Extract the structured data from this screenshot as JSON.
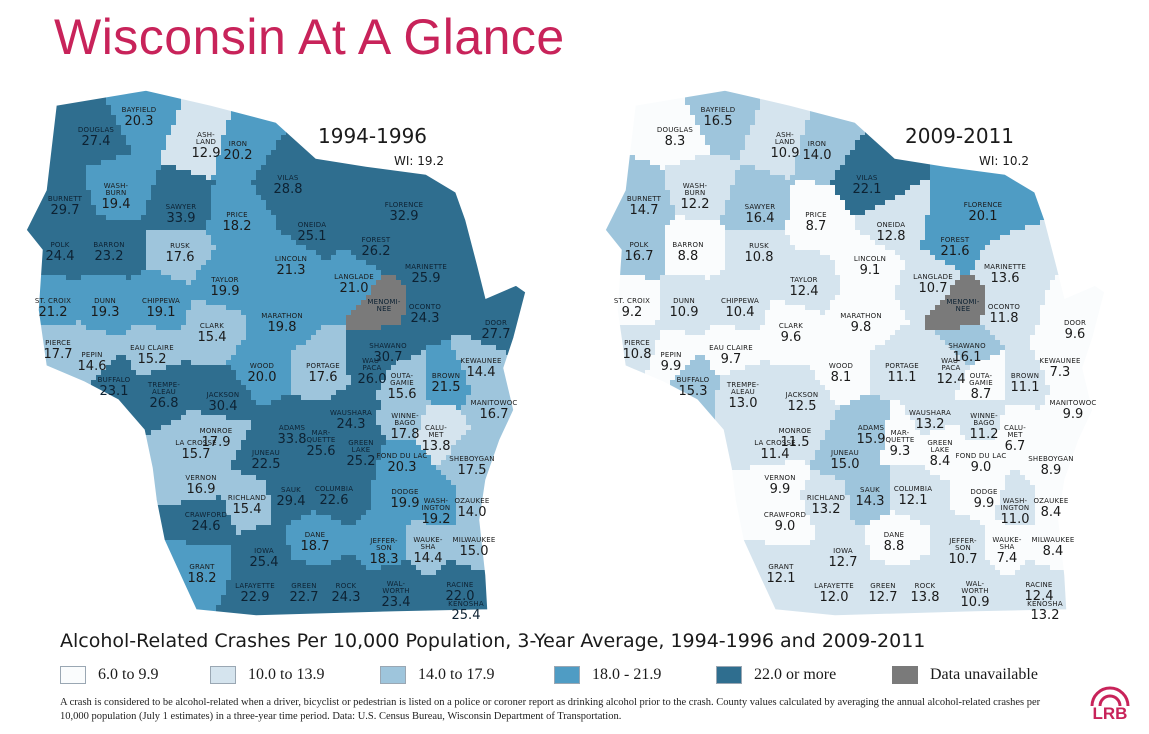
{
  "title": "Wisconsin At A Glance",
  "subtitle": "Alcohol-Related Crashes Per 10,000 Population, 3-Year Average, 1994-1996 and 2009-2011",
  "note": "A crash is considered to be alcohol-related when a driver, bicyclist or pedestrian is listed on a police or coroner report as drinking alcohol prior to the crash. County values calculated by averaging the annual alcohol-related crashes per 10,000 population (July 1 estimates) in a three-year time period. Data: U.S. Census Bureau, Wisconsin Department of Transportation.",
  "logo_text": "LRB",
  "colors": {
    "title": "#c8235a",
    "bin_6_9": "#fafcfd",
    "bin_10_13": "#d5e4ee",
    "bin_14_17": "#9ec5dc",
    "bin_18_21": "#4f9cc4",
    "bin_22_plus": "#2f6e8f",
    "unavailable": "#7a7a7a"
  },
  "legend": [
    {
      "label": "6.0 to 9.9",
      "color": "#fafcfd"
    },
    {
      "label": "10.0 to 13.9",
      "color": "#d5e4ee"
    },
    {
      "label": "14.0 to 17.9",
      "color": "#9ec5dc"
    },
    {
      "label": "18.0 - 21.9",
      "color": "#4f9cc4"
    },
    {
      "label": "22.0 or more",
      "color": "#2f6e8f"
    },
    {
      "label": "Data unavailable",
      "color": "#7a7a7a"
    }
  ],
  "maps": [
    {
      "period": "1994-1996",
      "wi_label": "WI: 19.2",
      "counties": [
        {
          "name": "DOUGLAS",
          "value": "27.4"
        },
        {
          "name": "BAYFIELD",
          "value": "20.3"
        },
        {
          "name": "ASH-\nLAND",
          "value": "12.9"
        },
        {
          "name": "IRON",
          "value": "20.2"
        },
        {
          "name": "VILAS",
          "value": "28.8"
        },
        {
          "name": "FLORENCE",
          "value": "32.9"
        },
        {
          "name": "BURNETT",
          "value": "29.7"
        },
        {
          "name": "WASH-\nBURN",
          "value": "19.4"
        },
        {
          "name": "SAWYER",
          "value": "33.9"
        },
        {
          "name": "PRICE",
          "value": "18.2"
        },
        {
          "name": "ONEIDA",
          "value": "25.1"
        },
        {
          "name": "FOREST",
          "value": "26.2"
        },
        {
          "name": "MARINETTE",
          "value": "25.9"
        },
        {
          "name": "POLK",
          "value": "24.4"
        },
        {
          "name": "BARRON",
          "value": "23.2"
        },
        {
          "name": "RUSK",
          "value": "17.6"
        },
        {
          "name": "LINCOLN",
          "value": "21.3"
        },
        {
          "name": "LANGLADE",
          "value": "21.0"
        },
        {
          "name": "TAYLOR",
          "value": "19.9"
        },
        {
          "name": "ST. CROIX",
          "value": "21.2"
        },
        {
          "name": "DUNN",
          "value": "19.3"
        },
        {
          "name": "CHIPPEWA",
          "value": "19.1"
        },
        {
          "name": "MENOMI-\nNEE",
          "value": ""
        },
        {
          "name": "OCONTO",
          "value": "24.3"
        },
        {
          "name": "MARATHON",
          "value": "19.8"
        },
        {
          "name": "CLARK",
          "value": "15.4"
        },
        {
          "name": "DOOR",
          "value": "27.7"
        },
        {
          "name": "PIERCE",
          "value": "17.7"
        },
        {
          "name": "EAU CLAIRE",
          "value": "15.2"
        },
        {
          "name": "SHAWANO",
          "value": "30.7"
        },
        {
          "name": "PEPIN",
          "value": "14.6"
        },
        {
          "name": "KEWAUNEE",
          "value": "14.4"
        },
        {
          "name": "WOOD",
          "value": "20.0"
        },
        {
          "name": "PORTAGE",
          "value": "17.6"
        },
        {
          "name": "WAU-\nPACA",
          "value": "26.0"
        },
        {
          "name": "OUTA-\nGAMIE",
          "value": "15.6"
        },
        {
          "name": "BROWN",
          "value": "21.5"
        },
        {
          "name": "BUFFALO",
          "value": "23.1"
        },
        {
          "name": "TREMPE-\nALEAU",
          "value": "26.8"
        },
        {
          "name": "JACKSON",
          "value": "30.4"
        },
        {
          "name": "MANITOWOC",
          "value": "16.7"
        },
        {
          "name": "WAUSHARA",
          "value": "24.3"
        },
        {
          "name": "WINNE-\nBAGO",
          "value": "17.8"
        },
        {
          "name": "CALU-\nMET",
          "value": "13.8"
        },
        {
          "name": "LA CROSSE",
          "value": "15.7"
        },
        {
          "name": "MONROE",
          "value": "17.9"
        },
        {
          "name": "ADAMS",
          "value": "33.8"
        },
        {
          "name": "MAR-\nQUETTE",
          "value": "25.6"
        },
        {
          "name": "GREEN\nLAKE",
          "value": "25.2"
        },
        {
          "name": "JUNEAU",
          "value": "22.5"
        },
        {
          "name": "FOND DU LAC",
          "value": "20.3"
        },
        {
          "name": "SHEBOYGAN",
          "value": "17.5"
        },
        {
          "name": "VERNON",
          "value": "16.9"
        },
        {
          "name": "RICHLAND",
          "value": "15.4"
        },
        {
          "name": "SAUK",
          "value": "29.4"
        },
        {
          "name": "COLUMBIA",
          "value": "22.6"
        },
        {
          "name": "DODGE",
          "value": "19.9"
        },
        {
          "name": "WASH-\nINGTON",
          "value": "19.2"
        },
        {
          "name": "OZAUKEE",
          "value": "14.0"
        },
        {
          "name": "CRAWFORD",
          "value": "24.6"
        },
        {
          "name": "DANE",
          "value": "18.7"
        },
        {
          "name": "JEFFER-\nSON",
          "value": "18.3"
        },
        {
          "name": "WAUKE-\nSHA",
          "value": "14.4"
        },
        {
          "name": "MILWAUKEE",
          "value": "15.0"
        },
        {
          "name": "GRANT",
          "value": "18.2"
        },
        {
          "name": "IOWA",
          "value": "25.4"
        },
        {
          "name": "LAFAYETTE",
          "value": "22.9"
        },
        {
          "name": "GREEN",
          "value": "22.7"
        },
        {
          "name": "ROCK",
          "value": "24.3"
        },
        {
          "name": "WAL-\nWORTH",
          "value": "23.4"
        },
        {
          "name": "RACINE",
          "value": "22.0"
        },
        {
          "name": "KENOSHA",
          "value": "25.4"
        }
      ]
    },
    {
      "period": "2009-2011",
      "wi_label": "WI: 10.2",
      "counties": [
        {
          "name": "DOUGLAS",
          "value": "8.3"
        },
        {
          "name": "BAYFIELD",
          "value": "16.5"
        },
        {
          "name": "ASH-\nLAND",
          "value": "10.9"
        },
        {
          "name": "IRON",
          "value": "14.0"
        },
        {
          "name": "VILAS",
          "value": "22.1"
        },
        {
          "name": "FLORENCE",
          "value": "20.1"
        },
        {
          "name": "BURNETT",
          "value": "14.7"
        },
        {
          "name": "WASH-\nBURN",
          "value": "12.2"
        },
        {
          "name": "SAWYER",
          "value": "16.4"
        },
        {
          "name": "PRICE",
          "value": "8.7"
        },
        {
          "name": "ONEIDA",
          "value": "12.8"
        },
        {
          "name": "FOREST",
          "value": "21.6"
        },
        {
          "name": "MARINETTE",
          "value": "13.6"
        },
        {
          "name": "POLK",
          "value": "16.7"
        },
        {
          "name": "BARRON",
          "value": "8.8"
        },
        {
          "name": "RUSK",
          "value": "10.8"
        },
        {
          "name": "LINCOLN",
          "value": "9.1"
        },
        {
          "name": "LANGLADE",
          "value": "10.7"
        },
        {
          "name": "TAYLOR",
          "value": "12.4"
        },
        {
          "name": "ST. CROIX",
          "value": "9.2"
        },
        {
          "name": "DUNN",
          "value": "10.9"
        },
        {
          "name": "CHIPPEWA",
          "value": "10.4"
        },
        {
          "name": "MENOMI-\nNEE",
          "value": ""
        },
        {
          "name": "OCONTO",
          "value": "11.8"
        },
        {
          "name": "MARATHON",
          "value": "9.8"
        },
        {
          "name": "CLARK",
          "value": "9.6"
        },
        {
          "name": "DOOR",
          "value": "9.6"
        },
        {
          "name": "PIERCE",
          "value": "10.8"
        },
        {
          "name": "EAU CLAIRE",
          "value": "9.7"
        },
        {
          "name": "SHAWANO",
          "value": "16.1"
        },
        {
          "name": "PEPIN",
          "value": "9.9"
        },
        {
          "name": "KEWAUNEE",
          "value": "7.3"
        },
        {
          "name": "WOOD",
          "value": "8.1"
        },
        {
          "name": "PORTAGE",
          "value": "11.1"
        },
        {
          "name": "WAU-\nPACA",
          "value": "12.4"
        },
        {
          "name": "OUTA-\nGAMIE",
          "value": "8.7"
        },
        {
          "name": "BROWN",
          "value": "11.1"
        },
        {
          "name": "BUFFALO",
          "value": "15.3"
        },
        {
          "name": "TREMPE-\nALEAU",
          "value": "13.0"
        },
        {
          "name": "JACKSON",
          "value": "12.5"
        },
        {
          "name": "MANITOWOC",
          "value": "9.9"
        },
        {
          "name": "WAUSHARA",
          "value": "13.2"
        },
        {
          "name": "WINNE-\nBAGO",
          "value": "11.2"
        },
        {
          "name": "CALU-\nMET",
          "value": "6.7"
        },
        {
          "name": "LA CROSSE",
          "value": "11.4"
        },
        {
          "name": "MONROE",
          "value": "11.5"
        },
        {
          "name": "ADAMS",
          "value": "15.9"
        },
        {
          "name": "MAR-\nQUETTE",
          "value": "9.3"
        },
        {
          "name": "GREEN\nLAKE",
          "value": "8.4"
        },
        {
          "name": "JUNEAU",
          "value": "15.0"
        },
        {
          "name": "FOND DU LAC",
          "value": "9.0"
        },
        {
          "name": "SHEBOYGAN",
          "value": "8.9"
        },
        {
          "name": "VERNON",
          "value": "9.9"
        },
        {
          "name": "RICHLAND",
          "value": "13.2"
        },
        {
          "name": "SAUK",
          "value": "14.3"
        },
        {
          "name": "COLUMBIA",
          "value": "12.1"
        },
        {
          "name": "DODGE",
          "value": "9.9"
        },
        {
          "name": "WASH-\nINGTON",
          "value": "11.0"
        },
        {
          "name": "OZAUKEE",
          "value": "8.4"
        },
        {
          "name": "CRAWFORD",
          "value": "9.0"
        },
        {
          "name": "DANE",
          "value": "8.8"
        },
        {
          "name": "JEFFER-\nSON",
          "value": "10.7"
        },
        {
          "name": "WAUKE-\nSHA",
          "value": "7.4"
        },
        {
          "name": "MILWAUKEE",
          "value": "8.4"
        },
        {
          "name": "GRANT",
          "value": "12.1"
        },
        {
          "name": "IOWA",
          "value": "12.7"
        },
        {
          "name": "LAFAYETTE",
          "value": "12.0"
        },
        {
          "name": "GREEN",
          "value": "12.7"
        },
        {
          "name": "ROCK",
          "value": "13.8"
        },
        {
          "name": "WAL-\nWORTH",
          "value": "10.9"
        },
        {
          "name": "RACINE",
          "value": "12.4"
        },
        {
          "name": "KENOSHA",
          "value": "13.2"
        }
      ]
    }
  ]
}
